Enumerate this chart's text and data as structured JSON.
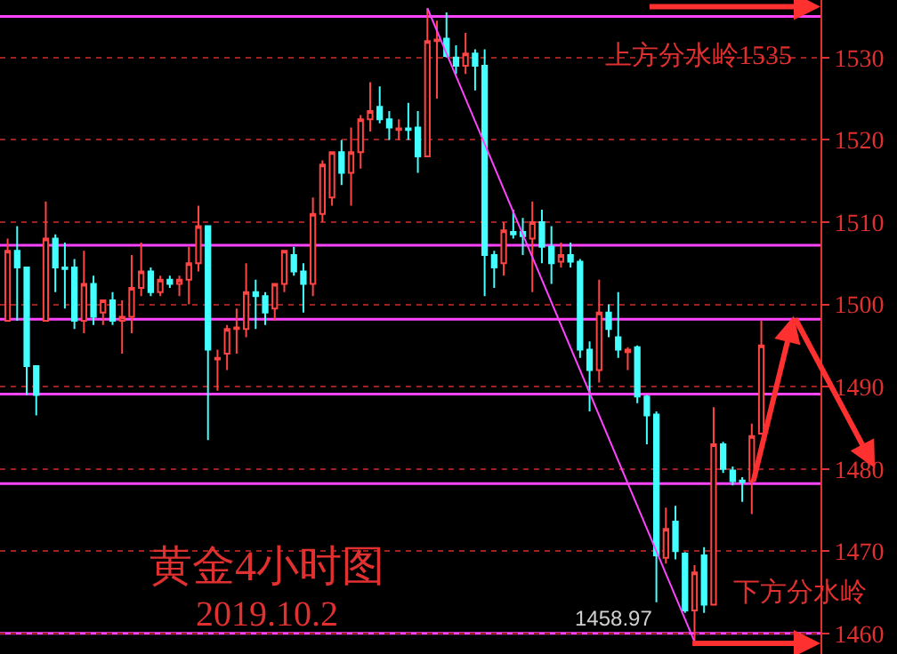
{
  "chart_data": {
    "type": "candlestick",
    "title": "黄金4小时图",
    "subtitle": "2019.10.2",
    "categories": [
      null,
      null,
      null,
      null,
      null,
      null,
      null,
      null,
      null,
      null,
      null,
      null,
      null,
      null,
      null,
      null,
      null,
      null,
      null,
      null,
      null,
      null,
      null,
      null,
      null,
      null,
      null,
      null,
      null,
      null,
      null,
      null,
      null,
      null,
      null,
      null,
      null,
      null,
      null,
      null,
      null,
      null,
      null,
      null,
      null,
      null,
      null,
      null,
      null,
      null,
      null,
      null,
      null,
      null,
      null,
      null,
      null,
      null,
      null,
      null,
      null,
      null,
      null,
      null,
      null,
      null,
      null,
      null,
      null,
      null,
      null,
      null,
      null,
      null,
      null,
      null,
      null,
      null,
      null,
      null
    ],
    "ohlc": [
      [
        1498,
        1508,
        1498,
        1506.5
      ],
      [
        1506.5,
        1509.5,
        1498,
        1504.5
      ],
      [
        1504.5,
        1504.5,
        1489,
        1492.5
      ],
      [
        1492.5,
        1492.5,
        1486.5,
        1489
      ],
      [
        1498,
        1512.5,
        1498,
        1508
      ],
      [
        1508,
        1508.5,
        1501.5,
        1504.5
      ],
      [
        1504.5,
        1507.5,
        1499.5,
        1504.3
      ],
      [
        1504.5,
        1505.5,
        1497,
        1498
      ],
      [
        1498,
        1506.5,
        1496.5,
        1502.5
      ],
      [
        1502.5,
        1503.5,
        1497.5,
        1498.5
      ],
      [
        1499,
        1500.5,
        1497.5,
        1500.5
      ],
      [
        1500.5,
        1501.5,
        1497.5,
        1498
      ],
      [
        1498,
        1500.5,
        1494,
        1498.5
      ],
      [
        1498.5,
        1506,
        1496.5,
        1502
      ],
      [
        1502,
        1507.5,
        1501,
        1504
      ],
      [
        1504,
        1504.5,
        1501,
        1501.5
      ],
      [
        1501.5,
        1503.5,
        1501,
        1503
      ],
      [
        1503,
        1503.5,
        1502,
        1502.5
      ],
      [
        1502.5,
        1503.5,
        1501,
        1503
      ],
      [
        1503,
        1507,
        1500,
        1505
      ],
      [
        1505,
        1512,
        1504,
        1509.5
      ],
      [
        1509.5,
        1509.5,
        1483.5,
        1494.5
      ],
      [
        1493.3,
        1494.5,
        1489.5,
        1493.5
      ],
      [
        1494,
        1497.5,
        1492,
        1497
      ],
      [
        1497,
        1499.5,
        1494,
        1497.2
      ],
      [
        1497,
        1505,
        1496,
        1501.5
      ],
      [
        1501.5,
        1503,
        1497,
        1501
      ],
      [
        1501,
        1501.5,
        1497.5,
        1499
      ],
      [
        1499.5,
        1502.5,
        1498,
        1502.5
      ],
      [
        1502.5,
        1506.5,
        1501.5,
        1506.5
      ],
      [
        1506,
        1507,
        1503.5,
        1504
      ],
      [
        1504,
        1505,
        1499,
        1502.5
      ],
      [
        1502.5,
        1513,
        1501,
        1511
      ],
      [
        1511,
        1517.5,
        1510,
        1517
      ],
      [
        1513,
        1518.5,
        1512,
        1518.5
      ],
      [
        1518.5,
        1520,
        1514.5,
        1516
      ],
      [
        1516,
        1521.5,
        1512,
        1518.5
      ],
      [
        1518.5,
        1523,
        1516.5,
        1522.5
      ],
      [
        1522.5,
        1527,
        1521,
        1523.5
      ],
      [
        1524,
        1526.5,
        1522,
        1522.5
      ],
      [
        1522.5,
        1523.5,
        1520,
        1521.5
      ],
      [
        1521.2,
        1522.5,
        1520,
        1521.4
      ],
      [
        1521.4,
        1524.5,
        1520,
        1521.2
      ],
      [
        1521.5,
        1523.5,
        1516,
        1518
      ],
      [
        1518,
        1536,
        1518,
        1532
      ],
      [
        1532,
        1534.5,
        1525,
        1532.2
      ],
      [
        1532.3,
        1535.5,
        1530,
        1530.2
      ],
      [
        1530,
        1531.5,
        1528,
        1529
      ],
      [
        1529,
        1533,
        1528,
        1530.5
      ],
      [
        1530.5,
        1531,
        1526,
        1529
      ],
      [
        1529,
        1531,
        1501,
        1506
      ],
      [
        1506,
        1506.5,
        1502,
        1504.5
      ],
      [
        1505,
        1510,
        1503.5,
        1509
      ],
      [
        1508.8,
        1511.5,
        1508,
        1508.5
      ],
      [
        1508.8,
        1510.5,
        1506,
        1508.3
      ],
      [
        1508,
        1512.5,
        1501.5,
        1510
      ],
      [
        1510,
        1511.5,
        1505,
        1507
      ],
      [
        1507,
        1509.5,
        1502.5,
        1505
      ],
      [
        1505.2,
        1507.5,
        1504.5,
        1506
      ],
      [
        1506,
        1507.5,
        1504.5,
        1505.2
      ],
      [
        1505.2,
        1505.5,
        1493.5,
        1494.5
      ],
      [
        1494.5,
        1495.5,
        1487,
        1492
      ],
      [
        1492,
        1503,
        1490.5,
        1499
      ],
      [
        1499,
        1500,
        1496,
        1497
      ],
      [
        1496,
        1501.5,
        1493.5,
        1494.5
      ],
      [
        1494.2,
        1494.8,
        1492,
        1494.5
      ],
      [
        1494.8,
        1495,
        1488,
        1488.8
      ],
      [
        1488.8,
        1489,
        1483,
        1486.5
      ],
      [
        1486.6,
        1487,
        1463.8,
        1469.5
      ],
      [
        1469.2,
        1475.3,
        1468.5,
        1472.7
      ],
      [
        1473.6,
        1475.5,
        1469,
        1470
      ],
      [
        1469.7,
        1469.9,
        1462.5,
        1462.8
      ],
      [
        1462.8,
        1468.3,
        1458.97,
        1467.4
      ],
      [
        1469.5,
        1470.5,
        1462.5,
        1463.5
      ],
      [
        1463.5,
        1487.5,
        1463.5,
        1483
      ],
      [
        1483,
        1483.3,
        1479.5,
        1480
      ],
      [
        1479.8,
        1480.3,
        1478,
        1478.5
      ],
      [
        1478.6,
        1479,
        1476,
        1478.4
      ],
      [
        1478.5,
        1485.5,
        1474.5,
        1484
      ],
      [
        1484.3,
        1498,
        1484.3,
        1495
      ]
    ],
    "colors": [
      "#ff4444",
      "#44ffff",
      "#44ffff",
      "#44ffff",
      "#ff4444",
      "#44ffff",
      "#44ffff",
      "#44ffff",
      "#ff4444",
      "#44ffff",
      "#ff4444",
      "#44ffff",
      "#ff4444",
      "#ff4444",
      "#ff4444",
      "#44ffff",
      "#ff4444",
      "#44ffff",
      "#ff4444",
      "#ff4444",
      "#ff4444",
      "#44ffff",
      "#ff4444",
      "#ff4444",
      "#ff4444",
      "#ff4444",
      "#44ffff",
      "#44ffff",
      "#ff4444",
      "#ff4444",
      "#44ffff",
      "#44ffff",
      "#ff4444",
      "#ff4444",
      "#ff4444",
      "#44ffff",
      "#ff4444",
      "#ff4444",
      "#ff4444",
      "#44ffff",
      "#44ffff",
      "#ff4444",
      "#44ffff",
      "#44ffff",
      "#ff4444",
      "#ff4444",
      "#44ffff",
      "#44ffff",
      "#ff4444",
      "#44ffff",
      "#44ffff",
      "#44ffff",
      "#ff4444",
      "#44ffff",
      "#44ffff",
      "#ff4444",
      "#44ffff",
      "#44ffff",
      "#ff4444",
      "#44ffff",
      "#44ffff",
      "#44ffff",
      "#ff4444",
      "#44ffff",
      "#44ffff",
      "#ff4444",
      "#44ffff",
      "#44ffff",
      "#44ffff",
      "#ff4444",
      "#44ffff",
      "#44ffff",
      "#ff4444",
      "#44ffff",
      "#ff4444",
      "#44ffff",
      "#44ffff",
      "#44ffff",
      "#ff4444",
      "#ff4444"
    ],
    "series": [
      {
        "type": "line",
        "values": [
          null,
          null,
          null,
          null,
          null,
          null,
          null,
          null,
          null,
          null,
          null,
          null,
          null,
          null,
          null,
          null,
          null,
          null,
          null,
          null,
          null,
          null,
          null,
          null,
          null,
          null,
          null,
          null,
          null,
          null,
          null,
          null,
          null,
          null,
          null,
          null,
          null,
          null,
          null,
          null,
          null,
          null,
          null,
          null,
          1536,
          null,
          null,
          null,
          null,
          null,
          null,
          null,
          null,
          null,
          null,
          null,
          null,
          null,
          null,
          null,
          null,
          null,
          null,
          null,
          null,
          null,
          null,
          null,
          null,
          null,
          null,
          null,
          1459,
          null,
          null,
          null,
          null,
          null,
          null,
          null
        ],
        "color": "#ff44ff"
      }
    ],
    "ylim": [
      1457.5,
      1537
    ],
    "yticks": [
      1460,
      1470,
      1480,
      1490,
      1500,
      1510,
      1520,
      1530
    ],
    "grid": "y",
    "legend": false,
    "tick_labels": "y",
    "ref_lines": [
      {
        "axis": "y",
        "value": 1535,
        "label": "上方分水岭1535",
        "color": "#ff44ff"
      },
      {
        "axis": "y",
        "value": 1507.2,
        "color": "#ff44ff"
      },
      {
        "axis": "y",
        "value": 1498.2,
        "color": "#ff44ff"
      },
      {
        "axis": "y",
        "value": 1489.1,
        "color": "#ff44ff"
      },
      {
        "axis": "y",
        "value": 1478.2,
        "color": "#ff44ff"
      },
      {
        "axis": "y",
        "value": 1460,
        "label": "下方分水岭",
        "color": "#ff44ff"
      }
    ],
    "annotations": [
      {
        "text": "1458.97",
        "y": 1458.97
      }
    ]
  }
}
